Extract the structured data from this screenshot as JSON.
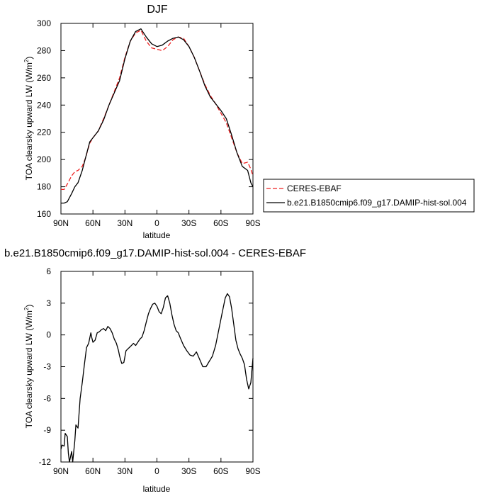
{
  "chart_data": [
    {
      "type": "line",
      "title": "DJF",
      "xlabel": "latitude",
      "ylabel_main": "TOA clearsky upward LW (W/m",
      "ylabel_sup": "2",
      "ylabel_close": ")",
      "xlim": [
        90,
        -90
      ],
      "ylim": [
        160,
        300
      ],
      "xticks": [
        90,
        60,
        30,
        0,
        -30,
        -60,
        -90
      ],
      "xtick_labels": [
        "90N",
        "60N",
        "30N",
        "0",
        "30S",
        "60S",
        "90S"
      ],
      "yticks": [
        160,
        180,
        200,
        220,
        240,
        260,
        280,
        300
      ],
      "ytick_labels": [
        "160",
        "180",
        "200",
        "220",
        "240",
        "260",
        "280",
        "300"
      ],
      "series": [
        {
          "name": "CERES-EBAF",
          "color": "#ee2020",
          "dash": true,
          "x": [
            90,
            87,
            84,
            80,
            77,
            74,
            70,
            67,
            63,
            60,
            55,
            50,
            45,
            40,
            35,
            30,
            25,
            20,
            15,
            10,
            5,
            0,
            -5,
            -10,
            -15,
            -20,
            -25,
            -30,
            -35,
            -40,
            -45,
            -50,
            -55,
            -60,
            -65,
            -70,
            -75,
            -80,
            -85,
            -88,
            -90
          ],
          "y": [
            178,
            178,
            182,
            188,
            191,
            192,
            195,
            201,
            212,
            216,
            221,
            230,
            240,
            250,
            260,
            275,
            287,
            293,
            295,
            287,
            282,
            281,
            280,
            283,
            288,
            290,
            289,
            283,
            275,
            265,
            255,
            247,
            241,
            234,
            227,
            216,
            205,
            197,
            198,
            193,
            188
          ]
        },
        {
          "name": "b.e21.B1850cmip6.f09_g17.DAMIP-hist-sol.004",
          "color": "#000000",
          "dash": false,
          "x": [
            90,
            87,
            84,
            80,
            77,
            74,
            70,
            67,
            63,
            60,
            55,
            50,
            45,
            40,
            35,
            30,
            25,
            20,
            15,
            10,
            5,
            0,
            -5,
            -10,
            -15,
            -20,
            -25,
            -30,
            -35,
            -40,
            -45,
            -50,
            -55,
            -60,
            -65,
            -70,
            -75,
            -80,
            -85,
            -88,
            -90
          ],
          "y": [
            168,
            168,
            169,
            175,
            180,
            183,
            192,
            201,
            213,
            216,
            221,
            229,
            240,
            249,
            258,
            274,
            287,
            294,
            296,
            290,
            285,
            283,
            284,
            287,
            289,
            290,
            288,
            283,
            275,
            265,
            254,
            246,
            241,
            236,
            230,
            218,
            205,
            195,
            192,
            183,
            180
          ]
        }
      ],
      "legend": "right"
    },
    {
      "type": "line",
      "title": "b.e21.B1850cmip6.f09_g17.DAMIP-hist-sol.004 - CERES-EBAF",
      "xlabel": "latitude",
      "ylabel_main": "TOA clearsky upward LW (W/m",
      "ylabel_sup": "2",
      "ylabel_close": ")",
      "xlim": [
        90,
        -90
      ],
      "ylim": [
        -12,
        6
      ],
      "xticks": [
        90,
        60,
        30,
        0,
        -30,
        -60,
        -90
      ],
      "xtick_labels": [
        "90N",
        "60N",
        "30N",
        "0",
        "30S",
        "60S",
        "90S"
      ],
      "yticks": [
        -12,
        -9,
        -6,
        -3,
        0,
        3,
        6
      ],
      "ytick_labels": [
        "-12",
        "-9",
        "-6",
        "-3",
        "0",
        "3",
        "6"
      ],
      "series": [
        {
          "color": "#000000",
          "x": [
            90,
            89,
            87,
            86,
            84,
            83,
            82,
            80,
            79,
            77,
            76,
            74,
            72,
            70,
            68,
            66,
            64,
            62,
            61,
            60,
            58,
            56,
            54,
            52,
            50,
            48,
            46,
            44,
            42,
            40,
            38,
            36,
            35,
            33,
            31,
            29,
            27,
            25,
            22,
            20,
            18,
            16,
            14,
            12,
            10,
            8,
            6,
            4,
            2,
            0,
            -2,
            -4,
            -6,
            -8,
            -10,
            -12,
            -14,
            -16,
            -18,
            -20,
            -22,
            -25,
            -28,
            -31,
            -34,
            -37,
            -40,
            -43,
            -46,
            -49,
            -52,
            -55,
            -58,
            -61,
            -64,
            -66,
            -68,
            -70,
            -72,
            -74,
            -76,
            -78,
            -80,
            -82,
            -84,
            -86,
            -88,
            -90
          ],
          "y": [
            -10.8,
            -10.4,
            -10.5,
            -9.3,
            -9.6,
            -11.2,
            -12.0,
            -11.0,
            -12.0,
            -10.0,
            -8.5,
            -8.8,
            -6.0,
            -4.5,
            -2.8,
            -1.2,
            -0.8,
            0.2,
            -0.3,
            -0.7,
            -0.5,
            0.2,
            0.3,
            0.5,
            0.6,
            0.4,
            0.8,
            0.6,
            0.2,
            -0.4,
            -0.8,
            -1.5,
            -2.0,
            -2.7,
            -2.6,
            -1.5,
            -1.3,
            -1.1,
            -0.8,
            -1.0,
            -0.7,
            -0.4,
            -0.2,
            0.4,
            1.2,
            2.0,
            2.5,
            2.9,
            3.0,
            2.7,
            2.2,
            2.0,
            2.6,
            3.5,
            3.7,
            3.0,
            1.9,
            1.0,
            0.4,
            0.2,
            -0.3,
            -1.0,
            -1.5,
            -1.9,
            -2.0,
            -1.6,
            -2.3,
            -3.0,
            -3.0,
            -2.5,
            -2.0,
            -1.0,
            0.5,
            2.0,
            3.5,
            3.9,
            3.6,
            2.5,
            1.0,
            -0.5,
            -1.3,
            -1.8,
            -2.2,
            -2.8,
            -4.2,
            -5.1,
            -4.5,
            -2.2
          ]
        }
      ]
    }
  ]
}
